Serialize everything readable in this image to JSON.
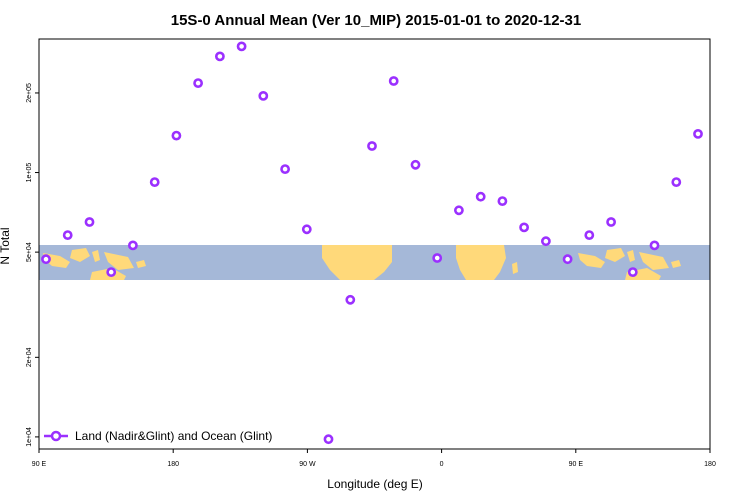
{
  "chart_data": {
    "type": "scatter",
    "title": "15S-0 Annual Mean (Ver 10_MIP)   2015-01-01 to 2020-12-31",
    "xlabel": "Longitude (deg E)",
    "ylabel": "N Total",
    "x_ticks": [
      "90 E",
      "180",
      "90 W",
      "0",
      "90 E",
      "180"
    ],
    "y_scale": "log",
    "y_ticks": [
      "1e+04",
      "2e+04",
      "5e+04",
      "1e+05",
      "2e+05"
    ],
    "ylim": [
      9000,
      320000
    ],
    "xlim": [
      90,
      450
    ],
    "legend": {
      "position": "bottom-left",
      "entries": [
        "Land (Nadir&Glint) and Ocean (Glint)"
      ]
    },
    "series": [
      {
        "name": "Land (Nadir&Glint) and Ocean (Glint)",
        "color": "#9b30ff",
        "marker": "open-circle",
        "x": [
          96,
          108,
          120,
          132,
          144,
          156,
          168,
          180,
          192,
          204,
          216,
          228,
          240,
          252,
          264,
          276,
          288,
          300,
          312,
          324,
          336,
          348,
          360,
          372,
          384,
          396,
          408,
          420,
          432,
          444,
          456
        ],
        "y": [
          47000,
          58000,
          65000,
          42000,
          53000,
          92000,
          138000,
          218000,
          275000,
          300000,
          195000,
          103000,
          61000,
          9800,
          33000,
          126000,
          222000,
          107000,
          47500,
          72000,
          81000,
          78000,
          62000,
          55000,
          47000,
          58000,
          65000,
          42000,
          53000,
          92000,
          140000
        ]
      }
    ]
  },
  "map_icon": "equatorial-world-map-strip",
  "colors": {
    "ocean": "#a5b8d8",
    "land": "#ffd97a",
    "series": "#9b30ff"
  }
}
